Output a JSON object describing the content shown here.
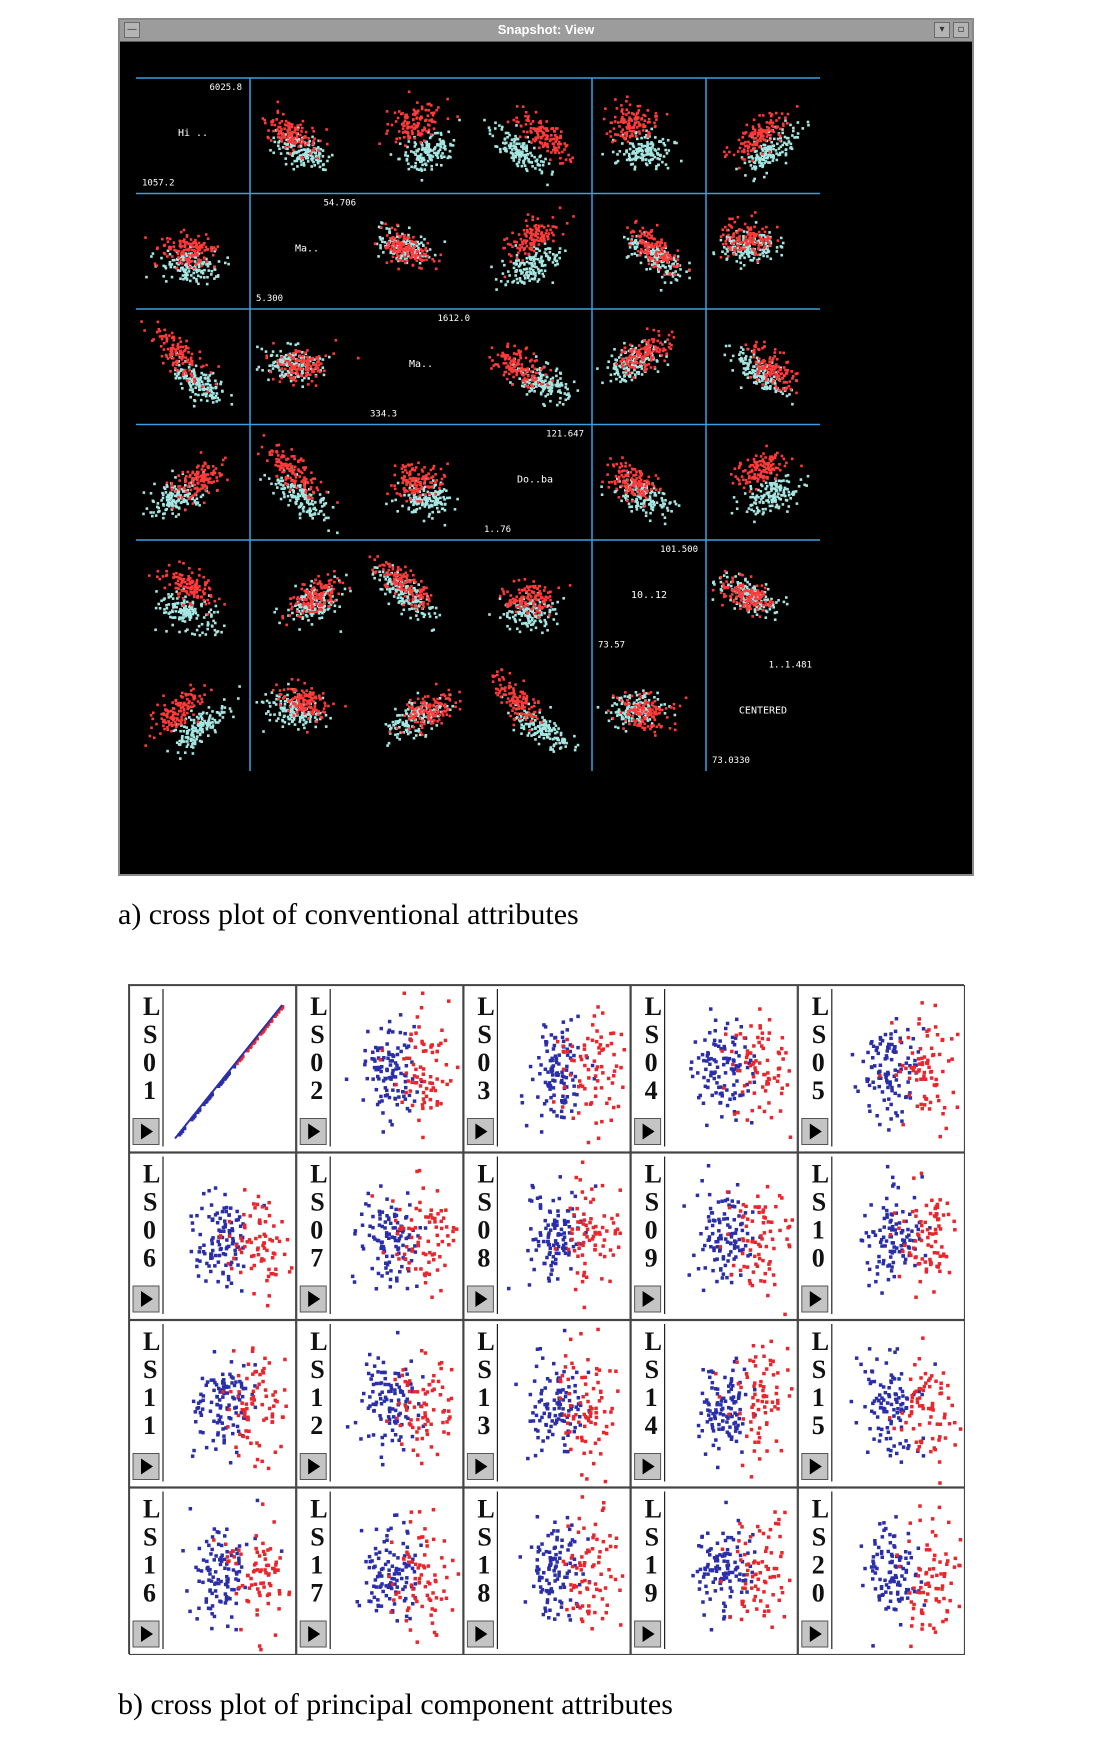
{
  "window": {
    "title": "Snapshot: View",
    "icons": {
      "menu": "window-menu-icon",
      "minimize": "minimize-icon",
      "maximize": "maximize-icon"
    }
  },
  "crossplot_conventional": {
    "variables": [
      {
        "name": "Hi ..",
        "max": "6025.8",
        "min": "1057.2"
      },
      {
        "name": "Ma..",
        "max": "54.706",
        "min": "5.300"
      },
      {
        "name": "Ma..",
        "max": "1612.0",
        "min": "334.3"
      },
      {
        "name": "Do..ba",
        "max": "121.647",
        "min": "1..76"
      },
      {
        "name": "10..12",
        "max": "101.500",
        "min": "73.57"
      },
      {
        "name": "CENTERED",
        "max": "1..1.481",
        "min": "73.0330"
      }
    ],
    "colors": {
      "class_a": "#ff3a3a",
      "class_b": "#a6e6e2",
      "grid": "#3aa0e0",
      "label": "#ffffff"
    }
  },
  "crossplot_pc": {
    "cells": [
      {
        "label": "LS01"
      },
      {
        "label": "LS02"
      },
      {
        "label": "LS03"
      },
      {
        "label": "LS04"
      },
      {
        "label": "LS05"
      },
      {
        "label": "LS06"
      },
      {
        "label": "LS07"
      },
      {
        "label": "LS08"
      },
      {
        "label": "LS09"
      },
      {
        "label": "LS10"
      },
      {
        "label": "LS11"
      },
      {
        "label": "LS12"
      },
      {
        "label": "LS13"
      },
      {
        "label": "LS14"
      },
      {
        "label": "LS15"
      },
      {
        "label": "LS16"
      },
      {
        "label": "LS17"
      },
      {
        "label": "LS18"
      },
      {
        "label": "LS19"
      },
      {
        "label": "LS20"
      }
    ],
    "button_icon": "play-arrow-icon",
    "colors": {
      "class_a": "#e8262c",
      "class_b": "#2a2ea8"
    }
  },
  "captions": {
    "a": "a) cross plot of conventional attributes",
    "b": "b) cross plot of principal component attributes"
  }
}
